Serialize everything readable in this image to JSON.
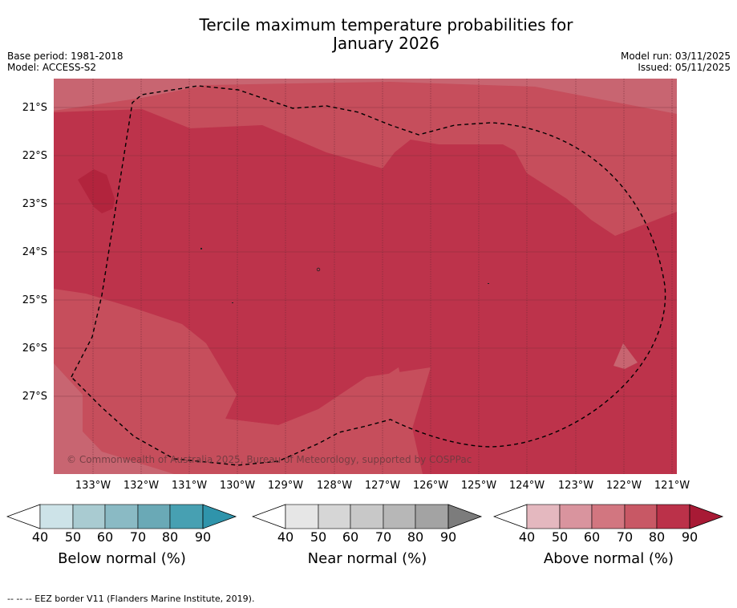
{
  "title_line1": "Tercile maximum temperature probabilities for",
  "title_line2": "January 2026",
  "base_period": "Base period: 1981-2018",
  "model": "Model: ACCESS-S2",
  "model_run": "Model run: 03/11/2025",
  "issued": "Issued: 05/11/2025",
  "credit": "© Commonwealth of Australia 2025, Bureau of Meteorology, supported by COSPPac",
  "lat_labels": [
    "21°S",
    "22°S",
    "23°S",
    "24°S",
    "25°S",
    "26°S",
    "27°S"
  ],
  "lon_labels": [
    "133°W",
    "132°W",
    "131°W",
    "130°W",
    "129°W",
    "128°W",
    "127°W",
    "126°W",
    "125°W",
    "124°W",
    "123°W",
    "122°W",
    "121°W"
  ],
  "colorbars": [
    {
      "label": "Below normal (%)",
      "ticks": [
        "40",
        "50",
        "60",
        "70",
        "80",
        "90"
      ],
      "colors": [
        "#cde3e8",
        "#a9cbd1",
        "#8abac4",
        "#6aa9b6",
        "#47a0b2",
        "#2f94ab"
      ]
    },
    {
      "label": "Near normal (%)",
      "ticks": [
        "40",
        "50",
        "60",
        "70",
        "80",
        "90"
      ],
      "colors": [
        "#e6e6e6",
        "#d6d6d6",
        "#c8c8c8",
        "#b7b7b7",
        "#a3a3a3",
        "#7c7c7c"
      ]
    },
    {
      "label": "Above normal (%)",
      "ticks": [
        "40",
        "50",
        "60",
        "70",
        "80",
        "90"
      ],
      "colors": [
        "#e4b8bf",
        "#d9949e",
        "#d27680",
        "#c85865",
        "#bb3149",
        "#a81a35"
      ]
    }
  ],
  "map_colors": {
    "band70": "#c86571",
    "band80": "#c64e5c",
    "band90": "#bd334b",
    "band95": "#b2243d"
  },
  "footer": "--  --  -- EEZ border V11 (Flanders Marine Institute, 2019)."
}
